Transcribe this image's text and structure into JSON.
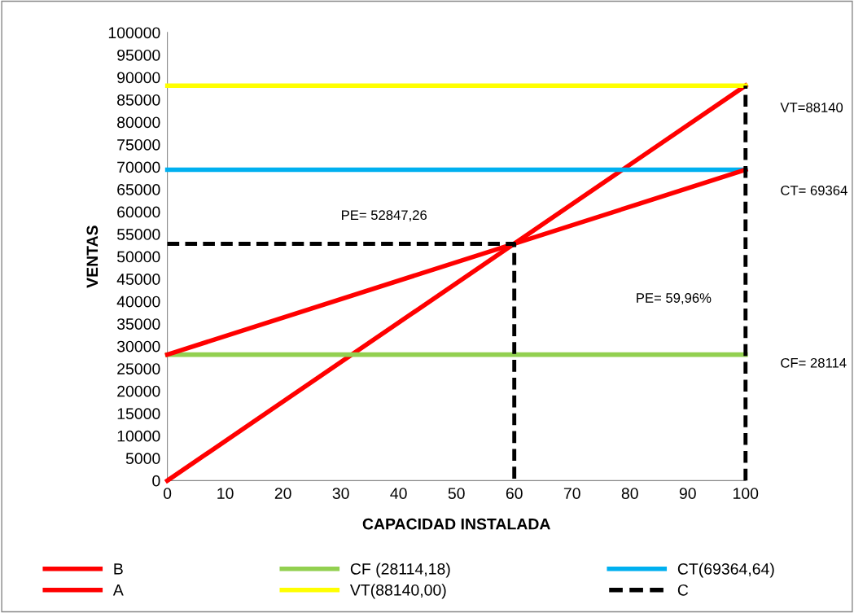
{
  "chart_data": {
    "type": "line",
    "xlabel": "CAPACIDAD INSTALADA",
    "ylabel": "VENTAS",
    "series": [
      {
        "name": "B",
        "color": "#ff0000",
        "x": [
          0,
          100
        ],
        "values": [
          0,
          88140
        ]
      },
      {
        "name": "CF (28114,18)",
        "color": "#92d050",
        "x": [
          0,
          100
        ],
        "values": [
          28114.18,
          28114.18
        ]
      },
      {
        "name": "CT(69364,64)",
        "color": "#00b0f0",
        "x": [
          0,
          100
        ],
        "values": [
          69364.64,
          69364.64
        ]
      },
      {
        "name": "A",
        "color": "#ff0000",
        "x": [
          0,
          100
        ],
        "values": [
          28114.18,
          69364.64
        ]
      },
      {
        "name": "VT(88140,00)",
        "color": "#ffff00",
        "x": [
          0,
          100
        ],
        "values": [
          88140,
          88140
        ]
      },
      {
        "name": "C",
        "color": "#000000",
        "line_style": "dashed",
        "x": [
          0,
          60,
          60,
          null,
          100,
          100
        ],
        "values": [
          52847.26,
          52847.26,
          0,
          null,
          0,
          88140
        ]
      }
    ],
    "annotations": [
      "VT=88140",
      "CT= 69364",
      "CF= 28114",
      "PE= 52847,26",
      "PE= 59,96%"
    ],
    "xlim": [
      0,
      100
    ],
    "xticks": [
      0,
      10,
      20,
      30,
      40,
      50,
      60,
      70,
      80,
      90,
      100
    ],
    "ylim": [
      0,
      100000
    ],
    "yticks": [
      0,
      5000,
      10000,
      15000,
      20000,
      25000,
      30000,
      35000,
      40000,
      45000,
      50000,
      55000,
      60000,
      65000,
      70000,
      75000,
      80000,
      85000,
      90000,
      95000,
      100000
    ],
    "grid": false,
    "legend": "bottom",
    "marker": "none",
    "line_style": "solid"
  }
}
